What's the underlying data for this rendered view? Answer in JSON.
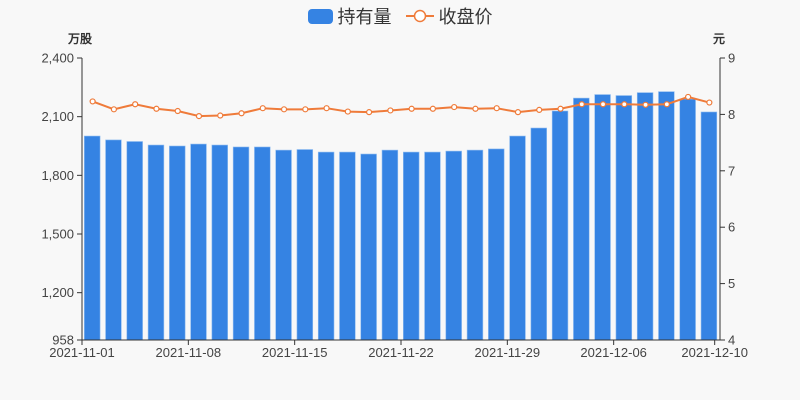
{
  "legend": {
    "bar_label": "持有量",
    "line_label": "收盘价"
  },
  "axes": {
    "left_unit": "万股",
    "right_unit": "元"
  },
  "colors": {
    "bar": "#3583e3",
    "bar_edge": "#8fbcf0",
    "line": "#ef7b3a",
    "axis": "#333333",
    "background": "#f8f8f8"
  },
  "chart_data": {
    "type": "bar+line",
    "title": "",
    "xlabel": "",
    "ylabel_left": "万股",
    "ylabel_right": "元",
    "ylim_left": [
      958,
      2400
    ],
    "ylim_right": [
      4,
      9
    ],
    "left_ticks": [
      "958",
      "1,200",
      "1,500",
      "1,800",
      "2,100",
      "2,400"
    ],
    "left_tick_values": [
      958,
      1200,
      1500,
      1800,
      2100,
      2400
    ],
    "right_ticks": [
      "4",
      "5",
      "6",
      "7",
      "8",
      "9"
    ],
    "right_tick_values": [
      4,
      5,
      6,
      7,
      8,
      9
    ],
    "x_tick_labels": [
      "2021-11-01",
      "2021-11-08",
      "2021-11-15",
      "2021-11-22",
      "2021-11-29",
      "2021-12-06",
      "2021-12-10"
    ],
    "grid": false,
    "legend_position": "top",
    "categories": [
      "2021-11-01",
      "2021-11-02",
      "2021-11-03",
      "2021-11-04",
      "2021-11-05",
      "2021-11-08",
      "2021-11-09",
      "2021-11-10",
      "2021-11-11",
      "2021-11-12",
      "2021-11-15",
      "2021-11-16",
      "2021-11-17",
      "2021-11-18",
      "2021-11-19",
      "2021-11-22",
      "2021-11-23",
      "2021-11-24",
      "2021-11-25",
      "2021-11-26",
      "2021-11-29",
      "2021-11-30",
      "2021-12-01",
      "2021-12-02",
      "2021-12-03",
      "2021-12-06",
      "2021-12-07",
      "2021-12-08",
      "2021-12-09",
      "2021-12-10"
    ],
    "series": [
      {
        "name": "持有量",
        "type": "bar",
        "axis": "left",
        "values": [
          2001,
          1981,
          1973,
          1955,
          1950,
          1960,
          1955,
          1945,
          1945,
          1929,
          1932,
          1919,
          1919,
          1909,
          1929,
          1919,
          1919,
          1924,
          1929,
          1935,
          2001,
          2042,
          2129,
          2195,
          2213,
          2208,
          2223,
          2228,
          2190,
          2124
        ]
      },
      {
        "name": "收盘价",
        "type": "line",
        "axis": "right",
        "values": [
          8.23,
          8.09,
          8.18,
          8.1,
          8.06,
          7.97,
          7.98,
          8.02,
          8.11,
          8.09,
          8.09,
          8.11,
          8.05,
          8.04,
          8.07,
          8.1,
          8.1,
          8.13,
          8.1,
          8.11,
          8.04,
          8.08,
          8.1,
          8.18,
          8.18,
          8.18,
          8.17,
          8.18,
          8.31,
          8.21
        ]
      }
    ]
  }
}
